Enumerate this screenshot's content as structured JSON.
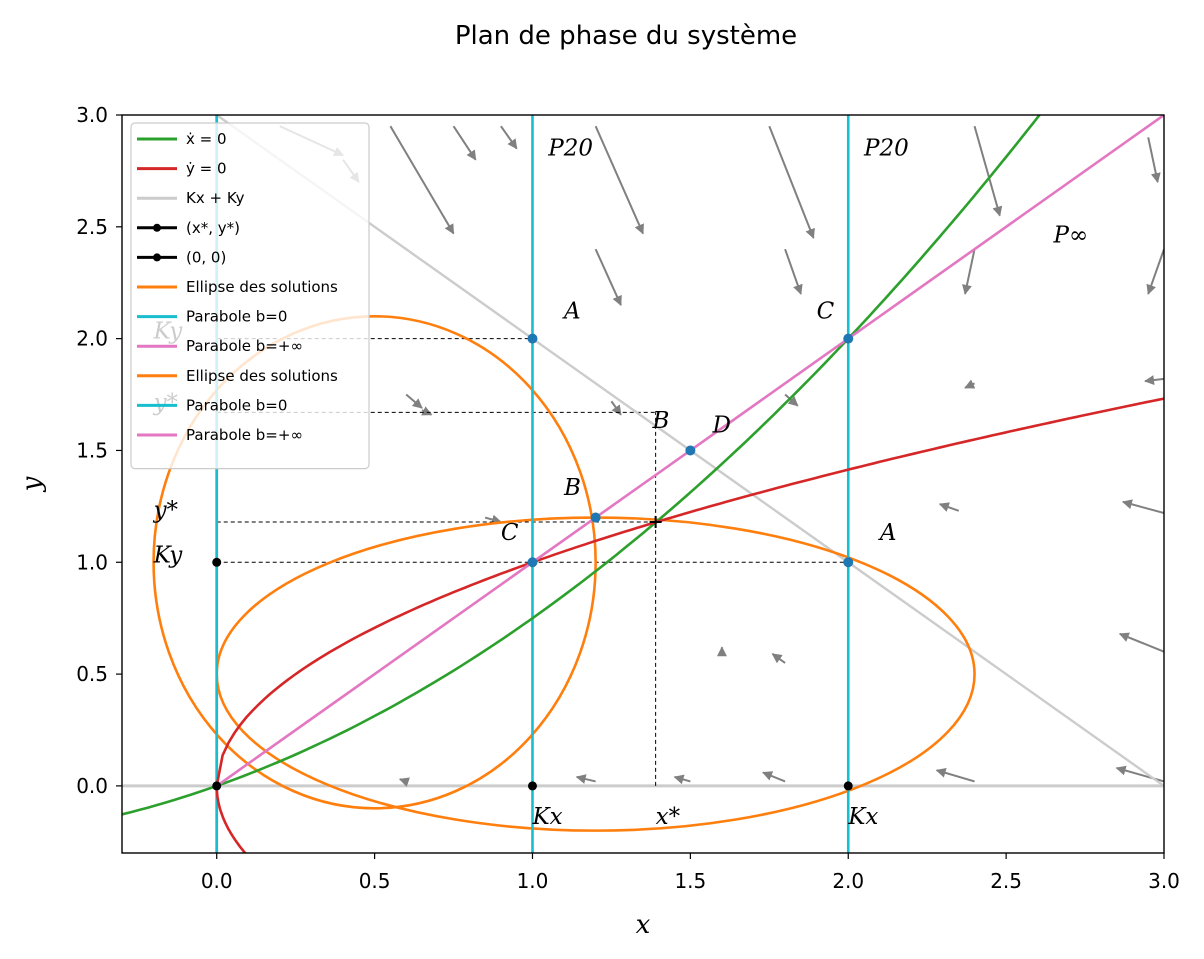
{
  "chart_data": {
    "type": "line",
    "title": "Plan de phase du système",
    "xlabel": "x",
    "ylabel": "y",
    "xlim": [
      -0.3,
      3.0
    ],
    "ylim": [
      -0.3,
      3.0
    ],
    "x_ticks": [
      "0.0",
      "0.5",
      "1.0",
      "1.5",
      "2.0",
      "2.5",
      "3.0"
    ],
    "y_ticks": [
      "0.0",
      "0.5",
      "1.0",
      "1.5",
      "2.0",
      "2.5",
      "3.0"
    ],
    "grid": false,
    "legend_position": "upper-left",
    "legend": [
      {
        "label": "ẋ = 0",
        "color": "#2ca02c",
        "marker": false
      },
      {
        "label": "ẏ = 0",
        "color": "#d62728",
        "marker": false
      },
      {
        "label": "Kx + Ky",
        "color": "#cccccc",
        "marker": false
      },
      {
        "label": "(x*, y*)",
        "color": "#000000",
        "marker": true
      },
      {
        "label": "(0, 0)",
        "color": "#000000",
        "marker": true
      },
      {
        "label": "Ellipse des solutions",
        "color": "#ff7f0e",
        "marker": false
      },
      {
        "label": "Parabole b=0",
        "color": "#17becf",
        "marker": false
      },
      {
        "label": "Parabole b=+∞",
        "color": "#e377c2",
        "marker": false
      },
      {
        "label": "Ellipse des solutions",
        "color": "#ff7f0e",
        "marker": false
      },
      {
        "label": "Parabole b=0",
        "color": "#17becf",
        "marker": false
      },
      {
        "label": "Parabole b=+∞",
        "color": "#e377c2",
        "marker": false
      }
    ],
    "series": [
      {
        "name": "ẋ = 0",
        "color": "#2ca02c",
        "kind": "poly",
        "coef": [
          0.5,
          0.25
        ],
        "x_range": [
          -0.3,
          3.0
        ]
      },
      {
        "name": "ẏ = 0",
        "color": "#d62728",
        "kind": "sqrt",
        "x_range": [
          0.0,
          3.0
        ]
      },
      {
        "name": "Kx + Ky",
        "color": "#cccccc",
        "points": [
          [
            0,
            3
          ],
          [
            3,
            0
          ]
        ]
      },
      {
        "name": "Ellipse des solutions",
        "color": "#ff7f0e",
        "center": [
          1.2,
          0.5
        ],
        "radii": [
          1.2,
          0.7
        ]
      },
      {
        "name": "Ellipse des solutions",
        "color": "#ff7f0e",
        "center": [
          0.5,
          1.0
        ],
        "radii": [
          0.7,
          1.1
        ]
      },
      {
        "name": "Parabole b=0",
        "color": "#17becf",
        "x_values": [
          0.0,
          1.0,
          2.0
        ]
      },
      {
        "name": "Parabole b=+∞",
        "color": "#e377c2",
        "points": [
          [
            0,
            0
          ],
          [
            3,
            3
          ]
        ]
      }
    ],
    "equilibrium": {
      "x": 1.39,
      "y": 1.18
    },
    "blue_points": [
      [
        1,
        2
      ],
      [
        2,
        2
      ],
      [
        1.5,
        1.5
      ],
      [
        1.2,
        1.2
      ],
      [
        1,
        1
      ],
      [
        2,
        1
      ]
    ],
    "black_points": [
      [
        0,
        1
      ],
      [
        1,
        0
      ],
      [
        2,
        0
      ],
      [
        0,
        0
      ]
    ],
    "annotations": [
      {
        "text": "P20",
        "x": 1.05,
        "y": 2.82
      },
      {
        "text": "P20",
        "x": 2.05,
        "y": 2.82
      },
      {
        "text": "P∞",
        "x": 2.65,
        "y": 2.43
      },
      {
        "text": "A",
        "x": 1.1,
        "y": 2.09
      },
      {
        "text": "C",
        "x": 1.9,
        "y": 2.09
      },
      {
        "text": "B",
        "x": 1.38,
        "y": 1.6
      },
      {
        "text": "D",
        "x": 1.57,
        "y": 1.58
      },
      {
        "text": "B",
        "x": 1.1,
        "y": 1.3
      },
      {
        "text": "C",
        "x": 0.9,
        "y": 1.1
      },
      {
        "text": "A",
        "x": 2.1,
        "y": 1.1
      },
      {
        "text": "y*",
        "x": -0.2,
        "y": 1.2
      },
      {
        "text": "Ky",
        "x": -0.2,
        "y": 1.0
      },
      {
        "text": "Ky",
        "x": -0.2,
        "y": 2.0
      },
      {
        "text": "y*",
        "x": -0.2,
        "y": 1.68
      },
      {
        "text": "Kx",
        "x": 1.0,
        "y": -0.17
      },
      {
        "text": "x*",
        "x": 1.39,
        "y": -0.17
      },
      {
        "text": "Kx",
        "x": 2.0,
        "y": -0.17
      }
    ],
    "arrows": [
      [
        0.2,
        2.95,
        0.2,
        -0.13
      ],
      [
        0.55,
        2.95,
        0.2,
        -0.48
      ],
      [
        0.75,
        2.95,
        0.07,
        -0.15
      ],
      [
        0.9,
        2.95,
        0.05,
        -0.1
      ],
      [
        1.2,
        2.95,
        0.15,
        -0.48
      ],
      [
        1.75,
        2.95,
        0.14,
        -0.5
      ],
      [
        2.4,
        2.95,
        0.08,
        -0.4
      ],
      [
        2.95,
        2.9,
        0.03,
        -0.2
      ],
      [
        0.4,
        2.8,
        0.05,
        -0.1
      ],
      [
        1.2,
        2.4,
        0.08,
        -0.25
      ],
      [
        1.8,
        2.4,
        0.05,
        -0.2
      ],
      [
        2.4,
        2.4,
        -0.03,
        -0.2
      ],
      [
        3.0,
        2.4,
        -0.05,
        -0.2
      ],
      [
        0.6,
        1.75,
        0.05,
        -0.06
      ],
      [
        1.25,
        1.72,
        0.03,
        -0.06
      ],
      [
        1.8,
        1.75,
        0.04,
        -0.05
      ],
      [
        2.4,
        1.8,
        -0.03,
        -0.02
      ],
      [
        3.0,
        1.82,
        -0.06,
        -0.01
      ],
      [
        0.65,
        1.68,
        0.03,
        -0.02
      ],
      [
        0.85,
        1.2,
        0.05,
        -0.02
      ],
      [
        2.35,
        1.23,
        -0.06,
        0.03
      ],
      [
        3.0,
        1.22,
        -0.13,
        0.05
      ],
      [
        1.6,
        0.6,
        0.0,
        0.02
      ],
      [
        1.8,
        0.55,
        -0.04,
        0.04
      ],
      [
        3.0,
        0.6,
        -0.14,
        0.08
      ],
      [
        1.2,
        0.02,
        -0.06,
        0.02
      ],
      [
        1.5,
        0.02,
        -0.05,
        0.02
      ],
      [
        1.8,
        0.02,
        -0.07,
        0.04
      ],
      [
        2.4,
        0.02,
        -0.12,
        0.05
      ],
      [
        3.0,
        0.02,
        -0.15,
        0.06
      ],
      [
        0.6,
        0.02,
        -0.02,
        0.01
      ]
    ]
  }
}
